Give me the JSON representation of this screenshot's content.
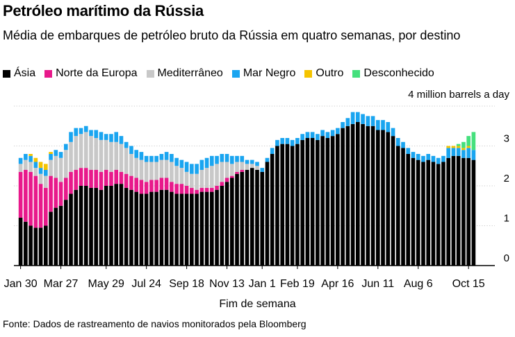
{
  "chart_data": {
    "type": "bar",
    "stacked": true,
    "title": "Petróleo marítimo da Rússia",
    "subtitle": "Média de embarques de petróleo bruto da Rússia em quatro semanas, por destino",
    "unit_label": "4 million barrels a day",
    "xlabel": "Fim de semana",
    "ylim": [
      0,
      4
    ],
    "yticks": [
      0,
      1,
      2,
      3
    ],
    "xticks": [
      {
        "label": "Jan 30",
        "index": 0
      },
      {
        "label": "Mar 27",
        "index": 8
      },
      {
        "label": "May 29",
        "index": 17
      },
      {
        "label": "Jul 24",
        "index": 25
      },
      {
        "label": "Sep 18",
        "index": 33
      },
      {
        "label": "Nov 13",
        "index": 41
      },
      {
        "label": "Jan 1",
        "index": 48
      },
      {
        "label": "Feb 19",
        "index": 55
      },
      {
        "label": "Apr 16",
        "index": 63
      },
      {
        "label": "Jun 11",
        "index": 71
      },
      {
        "label": "Aug 6",
        "index": 79
      },
      {
        "label": "Oct 15",
        "index": 89
      }
    ],
    "source": "Fonte: Dados de rastreamento de navios monitorados pela Bloomberg",
    "series": [
      {
        "name": "Ásia",
        "color": "#000000",
        "values": [
          1.2,
          1.1,
          1.0,
          0.95,
          0.95,
          1.0,
          1.35,
          1.45,
          1.5,
          1.65,
          1.8,
          1.9,
          2.0,
          2.0,
          1.95,
          1.95,
          1.9,
          2.0,
          2.0,
          2.05,
          2.05,
          1.95,
          1.9,
          1.85,
          1.8,
          1.8,
          1.85,
          1.85,
          1.9,
          1.9,
          1.85,
          1.8,
          1.8,
          1.8,
          1.8,
          1.8,
          1.85,
          1.85,
          1.85,
          1.9,
          2.0,
          2.1,
          2.2,
          2.3,
          2.35,
          2.4,
          2.45,
          2.4,
          2.35,
          2.6,
          2.8,
          3.0,
          3.05,
          3.05,
          3.0,
          3.05,
          3.15,
          3.2,
          3.2,
          3.15,
          3.25,
          3.2,
          3.25,
          3.3,
          3.45,
          3.5,
          3.55,
          3.6,
          3.55,
          3.5,
          3.5,
          3.4,
          3.4,
          3.35,
          3.25,
          3.0,
          2.95,
          2.8,
          2.7,
          2.65,
          2.6,
          2.65,
          2.6,
          2.55,
          2.6,
          2.7,
          2.75,
          2.75,
          2.7,
          2.7,
          2.65
        ]
      },
      {
        "name": "Norte da Europa",
        "color": "#e8198b",
        "values": [
          1.15,
          1.3,
          1.35,
          1.3,
          1.1,
          0.95,
          0.9,
          0.75,
          0.6,
          0.55,
          0.55,
          0.5,
          0.45,
          0.45,
          0.45,
          0.45,
          0.45,
          0.4,
          0.35,
          0.35,
          0.3,
          0.35,
          0.35,
          0.35,
          0.35,
          0.3,
          0.3,
          0.3,
          0.3,
          0.3,
          0.25,
          0.25,
          0.25,
          0.2,
          0.15,
          0.1,
          0.1,
          0.1,
          0.1,
          0.1,
          0.1,
          0.1,
          0.05,
          0.05,
          0.05,
          0.0,
          0.0,
          0.0,
          0.0,
          0.0,
          0.0,
          0.0,
          0.0,
          0.0,
          0.0,
          0.0,
          0.0,
          0.0,
          0.0,
          0.0,
          0.0,
          0.0,
          0.0,
          0.0,
          0.0,
          0.0,
          0.0,
          0.0,
          0.0,
          0.0,
          0.0,
          0.0,
          0.0,
          0.0,
          0.0,
          0.0,
          0.0,
          0.0,
          0.0,
          0.0,
          0.0,
          0.0,
          0.0,
          0.0,
          0.0,
          0.0,
          0.0,
          0.0,
          0.0,
          0.0,
          0.0
        ]
      },
      {
        "name": "Mediterrâneo",
        "color": "#c8c8c8",
        "values": [
          0.2,
          0.25,
          0.25,
          0.2,
          0.25,
          0.3,
          0.4,
          0.55,
          0.6,
          0.7,
          0.75,
          0.85,
          0.85,
          0.9,
          0.85,
          0.8,
          0.8,
          0.75,
          0.75,
          0.7,
          0.7,
          0.65,
          0.55,
          0.5,
          0.5,
          0.5,
          0.45,
          0.45,
          0.45,
          0.45,
          0.5,
          0.45,
          0.4,
          0.35,
          0.35,
          0.4,
          0.45,
          0.5,
          0.55,
          0.55,
          0.5,
          0.4,
          0.3,
          0.25,
          0.2,
          0.15,
          0.1,
          0.1,
          0.0,
          0.0,
          0.0,
          0.0,
          0.0,
          0.0,
          0.0,
          0.0,
          0.0,
          0.0,
          0.0,
          0.0,
          0.0,
          0.0,
          0.0,
          0.0,
          0.0,
          0.0,
          0.0,
          0.0,
          0.0,
          0.0,
          0.0,
          0.0,
          0.0,
          0.0,
          0.0,
          0.0,
          0.0,
          0.0,
          0.0,
          0.0,
          0.0,
          0.0,
          0.0,
          0.0,
          0.0,
          0.0,
          0.0,
          0.0,
          0.0,
          0.0,
          0.0
        ]
      },
      {
        "name": "Mar Negro",
        "color": "#1aa5f0",
        "values": [
          0.15,
          0.15,
          0.15,
          0.15,
          0.15,
          0.15,
          0.15,
          0.15,
          0.15,
          0.15,
          0.25,
          0.2,
          0.15,
          0.15,
          0.15,
          0.2,
          0.2,
          0.15,
          0.2,
          0.25,
          0.2,
          0.15,
          0.2,
          0.2,
          0.2,
          0.15,
          0.15,
          0.15,
          0.15,
          0.2,
          0.2,
          0.2,
          0.2,
          0.25,
          0.25,
          0.25,
          0.25,
          0.25,
          0.25,
          0.2,
          0.2,
          0.2,
          0.2,
          0.15,
          0.15,
          0.1,
          0.1,
          0.1,
          0.1,
          0.1,
          0.15,
          0.15,
          0.15,
          0.15,
          0.15,
          0.15,
          0.15,
          0.15,
          0.15,
          0.15,
          0.15,
          0.15,
          0.15,
          0.15,
          0.15,
          0.2,
          0.3,
          0.25,
          0.25,
          0.25,
          0.25,
          0.25,
          0.25,
          0.25,
          0.2,
          0.2,
          0.15,
          0.15,
          0.15,
          0.15,
          0.15,
          0.15,
          0.15,
          0.15,
          0.15,
          0.25,
          0.2,
          0.2,
          0.2,
          0.25,
          0.25
        ]
      },
      {
        "name": "Outro",
        "color": "#f5c400",
        "values": [
          0.0,
          0.0,
          0.05,
          0.1,
          0.15,
          0.15,
          0.05,
          0.0,
          0.0,
          0.0,
          0.0,
          0.0,
          0.0,
          0.0,
          0.0,
          0.0,
          0.0,
          0.0,
          0.0,
          0.0,
          0.0,
          0.0,
          0.0,
          0.0,
          0.0,
          0.0,
          0.0,
          0.0,
          0.0,
          0.0,
          0.0,
          0.0,
          0.0,
          0.0,
          0.0,
          0.0,
          0.0,
          0.0,
          0.0,
          0.0,
          0.0,
          0.0,
          0.0,
          0.0,
          0.0,
          0.0,
          0.0,
          0.0,
          0.0,
          0.0,
          0.0,
          0.0,
          0.0,
          0.0,
          0.0,
          0.0,
          0.0,
          0.0,
          0.0,
          0.0,
          0.0,
          0.0,
          0.0,
          0.0,
          0.0,
          0.0,
          0.0,
          0.0,
          0.0,
          0.0,
          0.0,
          0.0,
          0.0,
          0.0,
          0.0,
          0.0,
          0.0,
          0.0,
          0.0,
          0.0,
          0.0,
          0.0,
          0.0,
          0.0,
          0.0,
          0.05,
          0.05,
          0.05,
          0.05,
          0.05,
          0.0
        ]
      },
      {
        "name": "Desconhecido",
        "color": "#45e07d",
        "values": [
          0.0,
          0.0,
          0.0,
          0.0,
          0.0,
          0.0,
          0.0,
          0.0,
          0.0,
          0.0,
          0.0,
          0.0,
          0.0,
          0.0,
          0.0,
          0.0,
          0.0,
          0.0,
          0.0,
          0.0,
          0.0,
          0.0,
          0.0,
          0.0,
          0.0,
          0.0,
          0.0,
          0.0,
          0.0,
          0.0,
          0.0,
          0.0,
          0.0,
          0.0,
          0.0,
          0.0,
          0.0,
          0.0,
          0.0,
          0.0,
          0.0,
          0.0,
          0.0,
          0.0,
          0.0,
          0.0,
          0.0,
          0.0,
          0.0,
          0.0,
          0.0,
          0.0,
          0.0,
          0.0,
          0.0,
          0.0,
          0.0,
          0.0,
          0.0,
          0.0,
          0.0,
          0.0,
          0.0,
          0.0,
          0.0,
          0.0,
          0.0,
          0.0,
          0.0,
          0.0,
          0.0,
          0.0,
          0.0,
          0.0,
          0.0,
          0.0,
          0.0,
          0.0,
          0.0,
          0.0,
          0.0,
          0.0,
          0.0,
          0.0,
          0.0,
          0.0,
          0.0,
          0.05,
          0.15,
          0.25,
          0.45
        ]
      }
    ]
  }
}
